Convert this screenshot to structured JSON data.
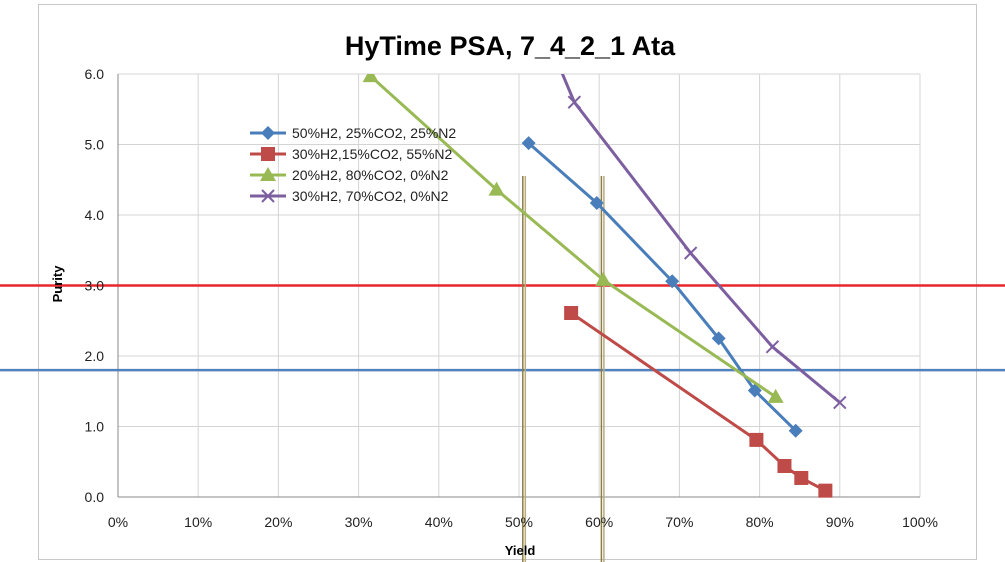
{
  "chart_data": {
    "type": "line",
    "title": "HyTime PSA, 7_4_2_1 Ata",
    "xlabel": "Yield",
    "ylabel": "Purity",
    "xlim": [
      0,
      100
    ],
    "ylim": [
      0,
      6
    ],
    "x_ticks": [
      "0%",
      "10%",
      "20%",
      "30%",
      "40%",
      "50%",
      "60%",
      "70%",
      "80%",
      "90%",
      "100%"
    ],
    "y_ticks": [
      "0.0",
      "1.0",
      "2.0",
      "3.0",
      "4.0",
      "5.0",
      "6.0"
    ],
    "grid": true,
    "legend_position": "top-left",
    "series": [
      {
        "name": "50%H2, 25%CO2, 25%N2",
        "color": "#4a7ebb",
        "marker": "diamond",
        "x": [
          51.2,
          59.7,
          69.1,
          74.9,
          79.4,
          84.5
        ],
        "y": [
          5.02,
          4.17,
          3.06,
          2.25,
          1.51,
          0.94
        ]
      },
      {
        "name": "30%H2,15%CO2, 55%N2",
        "color": "#be4b48",
        "marker": "square",
        "x": [
          56.5,
          79.6,
          83.1,
          85.2,
          88.2
        ],
        "y": [
          2.61,
          0.81,
          0.44,
          0.27,
          0.09
        ]
      },
      {
        "name": "20%H2, 80%CO2, 0%N2",
        "color": "#98b954",
        "marker": "triangle",
        "x": [
          31.5,
          47.2,
          60.5,
          82.0
        ],
        "y": [
          5.97,
          4.36,
          3.08,
          1.42
        ]
      },
      {
        "name": "30%H2, 70%CO2, 0%N2",
        "color": "#7d5fa0",
        "marker": "x",
        "x": [
          54.5,
          56.9,
          71.4,
          81.6,
          90.0
        ],
        "y": [
          6.25,
          5.6,
          3.46,
          2.13,
          1.34
        ]
      }
    ],
    "reference_lines": [
      {
        "orientation": "horizontal",
        "y": 3.0,
        "color": "#e8262b"
      },
      {
        "orientation": "horizontal",
        "y": 1.8,
        "color": "#4f81bd"
      },
      {
        "orientation": "vertical",
        "x": 50.6,
        "color": "#8b7d45"
      },
      {
        "orientation": "vertical",
        "x": 60.4,
        "color": "#8b7d45"
      }
    ]
  }
}
